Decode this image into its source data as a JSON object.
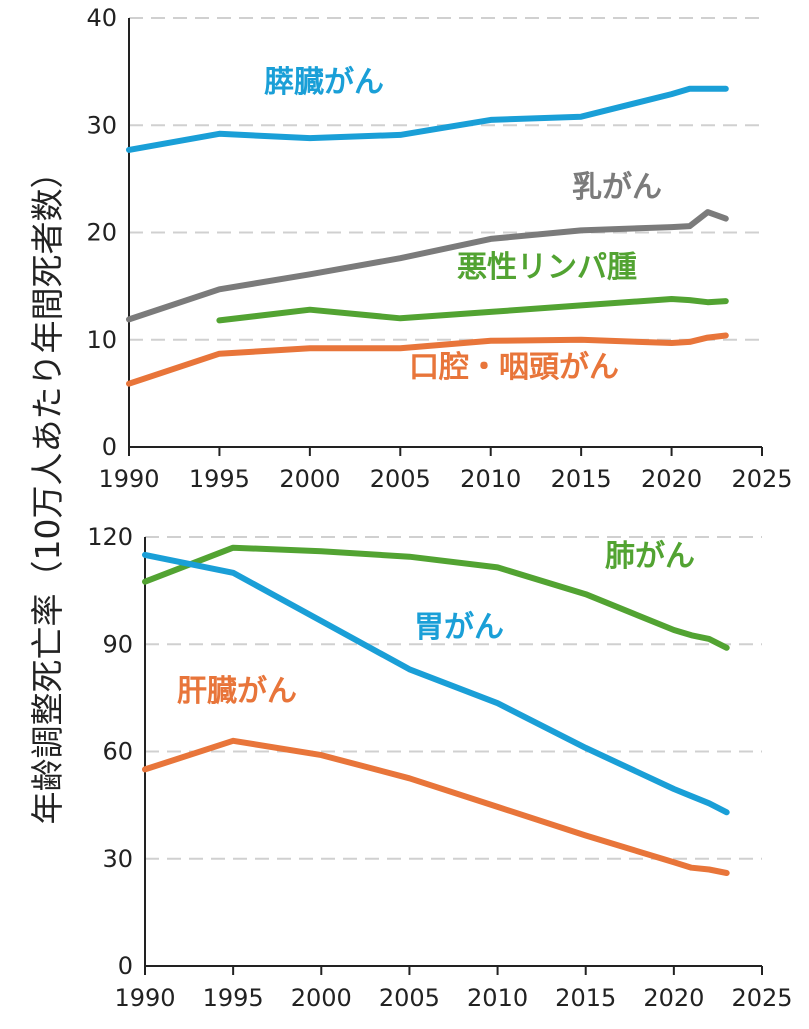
{
  "y_axis_label": "年齢調整死亡率（10万人あたり年間死者数）",
  "colors": {
    "blue": "#1a9fd7",
    "gray": "#7b7b7b",
    "green": "#52a332",
    "orange": "#e8753a",
    "grid": "#d0d0d0",
    "axis": "#222222"
  },
  "chart_data": [
    {
      "type": "line",
      "xlim": [
        1990,
        2025
      ],
      "ylim": [
        0,
        40
      ],
      "x_ticks": [
        1990,
        1995,
        2000,
        2005,
        2010,
        2015,
        2020,
        2025
      ],
      "y_ticks": [
        0,
        10,
        20,
        30,
        40
      ],
      "grid": "horizontal dashed",
      "series": [
        {
          "name": "膵臓がん",
          "color": "blue",
          "x": [
            1990,
            1995,
            2000,
            2005,
            2010,
            2015,
            2020,
            2021,
            2022,
            2023
          ],
          "y": [
            27.7,
            29.2,
            28.8,
            29.1,
            30.5,
            30.8,
            32.9,
            33.4,
            33.4,
            33.4
          ]
        },
        {
          "name": "乳がん",
          "color": "gray",
          "x": [
            1990,
            1995,
            2000,
            2005,
            2010,
            2015,
            2020,
            2021,
            2022,
            2023
          ],
          "y": [
            11.9,
            14.7,
            16.1,
            17.6,
            19.4,
            20.2,
            20.5,
            20.6,
            21.9,
            21.3
          ]
        },
        {
          "name": "悪性リンパ腫",
          "color": "green",
          "x": [
            1995,
            2000,
            2005,
            2010,
            2015,
            2020,
            2021,
            2022,
            2023
          ],
          "y": [
            11.8,
            12.8,
            12.0,
            12.6,
            13.2,
            13.8,
            13.7,
            13.5,
            13.6
          ]
        },
        {
          "name": "口腔・咽頭がん",
          "color": "orange",
          "x": [
            1990,
            1995,
            2000,
            2005,
            2010,
            2015,
            2020,
            2021,
            2022,
            2023
          ],
          "y": [
            5.9,
            8.7,
            9.2,
            9.2,
            9.9,
            10.0,
            9.7,
            9.8,
            10.2,
            10.4
          ]
        }
      ]
    },
    {
      "type": "line",
      "xlim": [
        1990,
        2025
      ],
      "ylim": [
        0,
        120
      ],
      "x_ticks": [
        1990,
        1995,
        2000,
        2005,
        2010,
        2015,
        2020,
        2025
      ],
      "y_ticks": [
        0,
        30,
        60,
        90,
        120
      ],
      "grid": "horizontal dashed",
      "series": [
        {
          "name": "肺がん",
          "color": "green",
          "x": [
            1990,
            1995,
            2000,
            2005,
            2010,
            2015,
            2020,
            2021,
            2022,
            2023
          ],
          "y": [
            107.5,
            117.0,
            116.0,
            114.5,
            111.5,
            104.0,
            94.0,
            92.5,
            91.5,
            89.0
          ]
        },
        {
          "name": "胃がん",
          "color": "blue",
          "x": [
            1990,
            1995,
            2000,
            2005,
            2010,
            2015,
            2020,
            2021,
            2022,
            2023
          ],
          "y": [
            115.0,
            110.0,
            96.5,
            83.0,
            73.5,
            61.0,
            49.5,
            47.5,
            45.5,
            43.0
          ]
        },
        {
          "name": "肝臓がん",
          "color": "orange",
          "x": [
            1990,
            1995,
            2000,
            2005,
            2010,
            2015,
            2020,
            2021,
            2022,
            2023
          ],
          "y": [
            55.0,
            63.0,
            59.0,
            52.5,
            44.5,
            36.5,
            29.0,
            27.5,
            27.0,
            26.0
          ]
        }
      ]
    }
  ]
}
